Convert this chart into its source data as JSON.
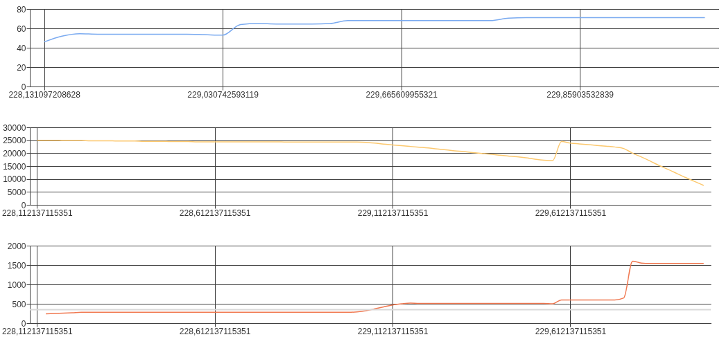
{
  "chart_data": [
    {
      "type": "line",
      "categories": [
        "228,131097208628",
        null,
        null,
        null,
        null,
        null,
        null,
        null,
        null,
        null,
        "229,030742593119",
        null,
        null,
        null,
        null,
        null,
        null,
        null,
        null,
        null,
        "229,665609955321",
        null,
        null,
        null,
        null,
        null,
        null,
        null,
        null,
        null,
        "229,85903532839",
        null,
        null,
        null,
        null,
        null,
        null,
        null
      ],
      "series": [
        {
          "color": "#7aaaf0",
          "values": [
            46,
            52,
            54.5,
            54,
            54,
            54,
            54,
            54,
            54,
            53.5,
            53,
            64,
            65,
            64.5,
            64.5,
            64.5,
            65,
            68,
            68,
            68,
            68,
            68,
            68,
            68,
            68,
            68,
            70.5,
            71,
            71,
            71,
            71,
            71,
            71,
            71,
            71,
            71,
            71,
            71
          ]
        }
      ],
      "ylim": [
        0,
        80
      ],
      "yticks": [
        0,
        20,
        40,
        60,
        80
      ],
      "grid": true
    },
    {
      "type": "line",
      "categories": [
        "228,112137115351",
        null,
        null,
        null,
        null,
        null,
        null,
        null,
        null,
        null,
        null,
        null,
        null,
        null,
        null,
        null,
        null,
        null,
        null,
        null,
        "228,612137115351",
        null,
        null,
        null,
        null,
        null,
        null,
        null,
        null,
        null,
        null,
        null,
        null,
        null,
        null,
        null,
        null,
        null,
        null,
        null,
        "229,112137115351",
        null,
        null,
        null,
        null,
        null,
        null,
        null,
        null,
        null,
        null,
        null,
        null,
        null,
        null,
        null,
        null,
        null,
        null,
        null,
        "229,612137115351",
        null,
        null,
        null,
        null,
        null,
        null,
        null,
        null,
        null,
        null,
        null,
        null,
        null,
        null,
        null
      ],
      "series": [
        {
          "color": "#fcc86e",
          "values": [
            25000,
            25000,
            25000,
            24900,
            24900,
            24900,
            24800,
            24800,
            24800,
            24700,
            24700,
            24700,
            24600,
            24600,
            24600,
            24500,
            24500,
            24500,
            24400,
            24400,
            24400,
            24400,
            24400,
            24400,
            24400,
            24400,
            24400,
            24400,
            24300,
            24300,
            24300,
            24300,
            24300,
            24300,
            24300,
            24300,
            24300,
            24200,
            23900,
            23500,
            23200,
            22900,
            22600,
            22300,
            22000,
            21600,
            21300,
            20900,
            20600,
            20200,
            19900,
            19600,
            19200,
            18900,
            18600,
            18200,
            17700,
            17300,
            17100,
            24500,
            23900,
            23600,
            23300,
            23000,
            22700,
            22400,
            21800,
            20000,
            18500,
            16900,
            15200,
            13700,
            12100,
            10500,
            9000,
            7500
          ]
        }
      ],
      "ylim": [
        0,
        30000
      ],
      "yticks": [
        0,
        5000,
        10000,
        15000,
        20000,
        25000,
        30000
      ],
      "grid": true
    },
    {
      "type": "line",
      "categories": [
        "228,112137115351",
        null,
        null,
        null,
        null,
        null,
        null,
        null,
        null,
        null,
        null,
        null,
        null,
        null,
        null,
        null,
        null,
        null,
        null,
        null,
        "228,612137115351",
        null,
        null,
        null,
        null,
        null,
        null,
        null,
        null,
        null,
        null,
        null,
        null,
        null,
        null,
        null,
        null,
        null,
        null,
        null,
        "229,112137115351",
        null,
        null,
        null,
        null,
        null,
        null,
        null,
        null,
        null,
        null,
        null,
        null,
        null,
        null,
        null,
        null,
        null,
        null,
        null,
        "229,612137115351",
        null,
        null,
        null,
        null,
        null,
        null,
        null,
        null,
        null,
        null,
        null,
        null,
        null,
        null,
        null
      ],
      "series": [
        {
          "color": "#f07850",
          "values": [
            null,
            240,
            250,
            260,
            270,
            280,
            280,
            280,
            280,
            280,
            280,
            280,
            280,
            280,
            280,
            280,
            280,
            280,
            280,
            280,
            280,
            280,
            280,
            280,
            280,
            280,
            280,
            280,
            280,
            280,
            280,
            280,
            280,
            280,
            280,
            280,
            290,
            320,
            370,
            420,
            470,
            500,
            520,
            510,
            510,
            510,
            510,
            510,
            510,
            510,
            510,
            510,
            510,
            510,
            510,
            510,
            510,
            510,
            500,
            600,
            600,
            600,
            600,
            600,
            600,
            600,
            650,
            1600,
            1550,
            1540,
            1540,
            1540,
            1540,
            1540,
            1540,
            1540
          ]
        }
      ],
      "ylim": [
        0,
        2000
      ],
      "yticks": [
        0,
        500,
        1000,
        1500,
        2000
      ],
      "grid": true,
      "ref_lines": [
        {
          "axis": "y",
          "value": 350,
          "color": "#d9d9d9"
        }
      ]
    }
  ]
}
